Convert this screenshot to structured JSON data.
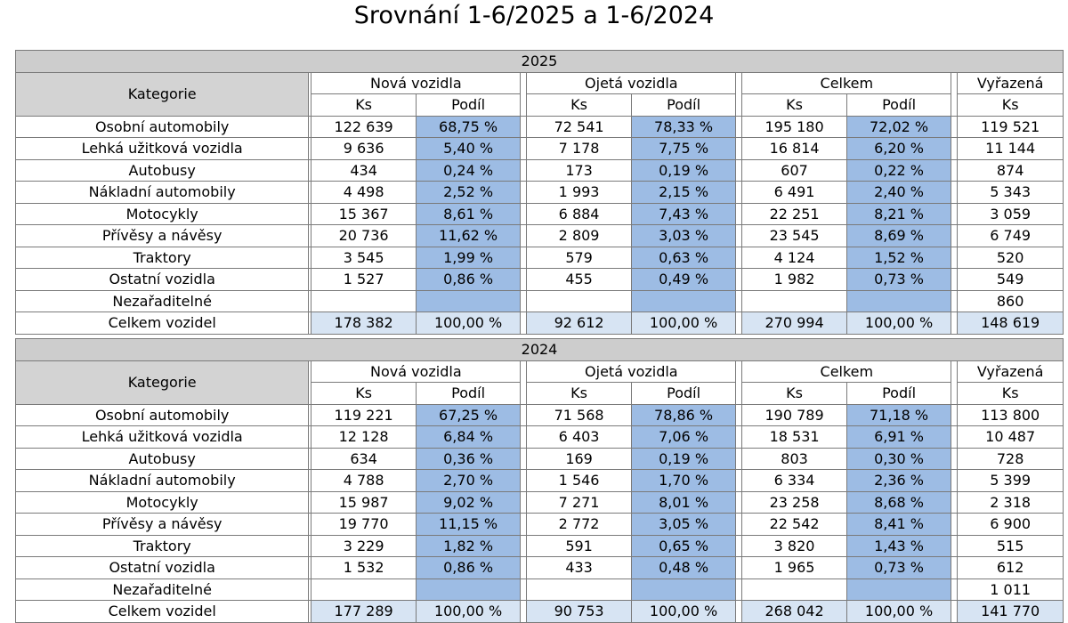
{
  "title": "Srovnání 1-6/2025 a 1-6/2024",
  "headers": {
    "category": "Kategorie",
    "groups": [
      "Nová vozidla",
      "Ojetá vozidla",
      "Celkem"
    ],
    "discarded": "Vyřazená",
    "count": "Ks",
    "share": "Podíl"
  },
  "colors": {
    "header_fill": "#d3d3d3",
    "share_fill": "#9dbce4",
    "total_fill": "#d7e4f3"
  },
  "tables": [
    {
      "year": "2025",
      "rows": [
        {
          "label": "Osobní automobily",
          "new_ks": "122 639",
          "new_pct": "68,75 %",
          "used_ks": "72 541",
          "used_pct": "78,33 %",
          "total_ks": "195 180",
          "total_pct": "72,02 %",
          "vyr_ks": "119 521"
        },
        {
          "label": "Lehká užitková vozidla",
          "new_ks": "9 636",
          "new_pct": "5,40 %",
          "used_ks": "7 178",
          "used_pct": "7,75 %",
          "total_ks": "16 814",
          "total_pct": "6,20 %",
          "vyr_ks": "11 144"
        },
        {
          "label": "Autobusy",
          "new_ks": "434",
          "new_pct": "0,24 %",
          "used_ks": "173",
          "used_pct": "0,19 %",
          "total_ks": "607",
          "total_pct": "0,22 %",
          "vyr_ks": "874"
        },
        {
          "label": "Nákladní automobily",
          "new_ks": "4 498",
          "new_pct": "2,52 %",
          "used_ks": "1 993",
          "used_pct": "2,15 %",
          "total_ks": "6 491",
          "total_pct": "2,40 %",
          "vyr_ks": "5 343"
        },
        {
          "label": "Motocykly",
          "new_ks": "15 367",
          "new_pct": "8,61 %",
          "used_ks": "6 884",
          "used_pct": "7,43 %",
          "total_ks": "22 251",
          "total_pct": "8,21 %",
          "vyr_ks": "3 059"
        },
        {
          "label": "Přívěsy a návěsy",
          "new_ks": "20 736",
          "new_pct": "11,62 %",
          "used_ks": "2 809",
          "used_pct": "3,03 %",
          "total_ks": "23 545",
          "total_pct": "8,69 %",
          "vyr_ks": "6 749"
        },
        {
          "label": "Traktory",
          "new_ks": "3 545",
          "new_pct": "1,99 %",
          "used_ks": "579",
          "used_pct": "0,63 %",
          "total_ks": "4 124",
          "total_pct": "1,52 %",
          "vyr_ks": "520"
        },
        {
          "label": "Ostatní vozidla",
          "new_ks": "1 527",
          "new_pct": "0,86 %",
          "used_ks": "455",
          "used_pct": "0,49 %",
          "total_ks": "1 982",
          "total_pct": "0,73 %",
          "vyr_ks": "549"
        },
        {
          "label": "Nezařaditelné",
          "new_ks": "",
          "new_pct": "",
          "used_ks": "",
          "used_pct": "",
          "total_ks": "",
          "total_pct": "",
          "vyr_ks": "860"
        },
        {
          "label": "Celkem vozidel",
          "new_ks": "178 382",
          "new_pct": "100,00 %",
          "used_ks": "92 612",
          "used_pct": "100,00 %",
          "total_ks": "270 994",
          "total_pct": "100,00 %",
          "vyr_ks": "148 619"
        }
      ]
    },
    {
      "year": "2024",
      "rows": [
        {
          "label": "Osobní automobily",
          "new_ks": "119 221",
          "new_pct": "67,25 %",
          "used_ks": "71 568",
          "used_pct": "78,86 %",
          "total_ks": "190 789",
          "total_pct": "71,18 %",
          "vyr_ks": "113 800"
        },
        {
          "label": "Lehká užitková vozidla",
          "new_ks": "12 128",
          "new_pct": "6,84 %",
          "used_ks": "6 403",
          "used_pct": "7,06 %",
          "total_ks": "18 531",
          "total_pct": "6,91 %",
          "vyr_ks": "10 487"
        },
        {
          "label": "Autobusy",
          "new_ks": "634",
          "new_pct": "0,36 %",
          "used_ks": "169",
          "used_pct": "0,19 %",
          "total_ks": "803",
          "total_pct": "0,30 %",
          "vyr_ks": "728"
        },
        {
          "label": "Nákladní automobily",
          "new_ks": "4 788",
          "new_pct": "2,70 %",
          "used_ks": "1 546",
          "used_pct": "1,70 %",
          "total_ks": "6 334",
          "total_pct": "2,36 %",
          "vyr_ks": "5 399"
        },
        {
          "label": "Motocykly",
          "new_ks": "15 987",
          "new_pct": "9,02 %",
          "used_ks": "7 271",
          "used_pct": "8,01 %",
          "total_ks": "23 258",
          "total_pct": "8,68 %",
          "vyr_ks": "2 318"
        },
        {
          "label": "Přívěsy a návěsy",
          "new_ks": "19 770",
          "new_pct": "11,15 %",
          "used_ks": "2 772",
          "used_pct": "3,05 %",
          "total_ks": "22 542",
          "total_pct": "8,41 %",
          "vyr_ks": "6 900"
        },
        {
          "label": "Traktory",
          "new_ks": "3 229",
          "new_pct": "1,82 %",
          "used_ks": "591",
          "used_pct": "0,65 %",
          "total_ks": "3 820",
          "total_pct": "1,43 %",
          "vyr_ks": "515"
        },
        {
          "label": "Ostatní vozidla",
          "new_ks": "1 532",
          "new_pct": "0,86 %",
          "used_ks": "433",
          "used_pct": "0,48 %",
          "total_ks": "1 965",
          "total_pct": "0,73 %",
          "vyr_ks": "612"
        },
        {
          "label": "Nezařaditelné",
          "new_ks": "",
          "new_pct": "",
          "used_ks": "",
          "used_pct": "",
          "total_ks": "",
          "total_pct": "",
          "vyr_ks": "1 011"
        },
        {
          "label": "Celkem vozidel",
          "new_ks": "177 289",
          "new_pct": "100,00 %",
          "used_ks": "90 753",
          "used_pct": "100,00 %",
          "total_ks": "268 042",
          "total_pct": "100,00 %",
          "vyr_ks": "141 770"
        }
      ]
    }
  ]
}
